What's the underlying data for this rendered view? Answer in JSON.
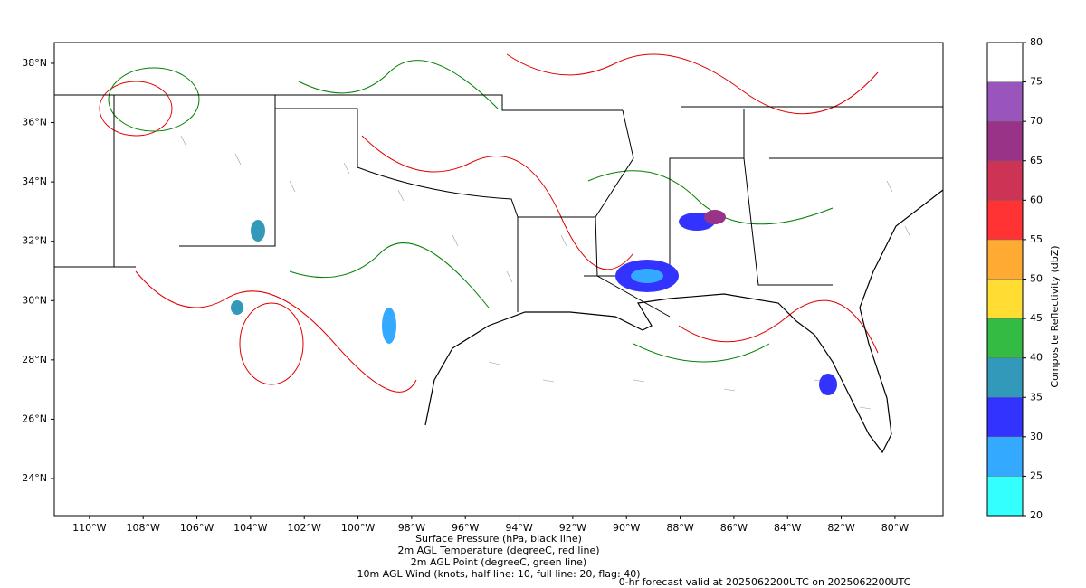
{
  "map": {
    "xlim": [
      -111.31,
      -78.21
    ],
    "ylim": [
      22.75,
      38.7
    ],
    "xticks": [
      {
        "value": -110,
        "label": "110°W"
      },
      {
        "value": -108,
        "label": "108°W"
      },
      {
        "value": -106,
        "label": "106°W"
      },
      {
        "value": -104,
        "label": "104°W"
      },
      {
        "value": -102,
        "label": "102°W"
      },
      {
        "value": -100,
        "label": "100°W"
      },
      {
        "value": -98,
        "label": "98°W"
      },
      {
        "value": -96,
        "label": "96°W"
      },
      {
        "value": -94,
        "label": "94°W"
      },
      {
        "value": -92,
        "label": "92°W"
      },
      {
        "value": -90,
        "label": "90°W"
      },
      {
        "value": -88,
        "label": "88°W"
      },
      {
        "value": -86,
        "label": "86°W"
      },
      {
        "value": -84,
        "label": "84°W"
      },
      {
        "value": -82,
        "label": "82°W"
      },
      {
        "value": -80,
        "label": "80°W"
      }
    ],
    "yticks": [
      {
        "value": 24,
        "label": "24°N"
      },
      {
        "value": 26,
        "label": "26°N"
      },
      {
        "value": 28,
        "label": "28°N"
      },
      {
        "value": 30,
        "label": "30°N"
      },
      {
        "value": 32,
        "label": "32°N"
      },
      {
        "value": 34,
        "label": "34°N"
      },
      {
        "value": 36,
        "label": "36°N"
      },
      {
        "value": 38,
        "label": "38°N"
      }
    ],
    "captions": [
      {
        "text": "Surface Pressure (hPa, black line)",
        "color": "#000000"
      },
      {
        "text": "2m AGL Temperature (degreeC, red line)",
        "color": "#e00000"
      },
      {
        "text": "2m AGL Point (degreeC, green line)",
        "color": "#008000"
      },
      {
        "text": "10m AGL Wind (knots, half line: 10, full line: 20, flag: 40)",
        "color": "#808080"
      }
    ],
    "forecast_note": {
      "text": "0-hr forecast valid at 2025062200UTC on 2025062200UTC",
      "color": "#e00000"
    }
  },
  "colorbar": {
    "label": "Composite Reflectivity (dbZ)",
    "lim": [
      20,
      80
    ],
    "bins": [
      20,
      25,
      30,
      35,
      40,
      45,
      50,
      55,
      60,
      65,
      70,
      75,
      80
    ],
    "colors": [
      "#33ffff",
      "#33aaff",
      "#3333ff",
      "#3399bb",
      "#33bb44",
      "#ffdd33",
      "#ffaa33",
      "#ff3333",
      "#cc3355",
      "#993388",
      "#9955bb",
      "#ffffff"
    ],
    "ticks": [
      20,
      25,
      30,
      35,
      40,
      45,
      50,
      55,
      60,
      65,
      70,
      75,
      80
    ]
  }
}
